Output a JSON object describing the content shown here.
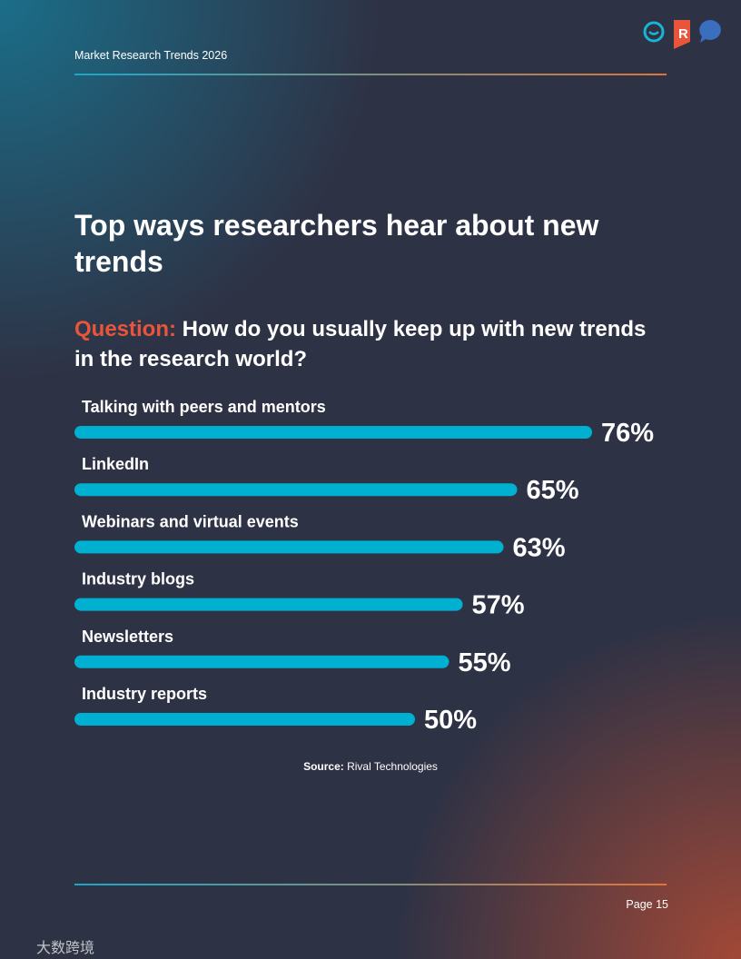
{
  "header": {
    "title": "Market Research Trends 2026"
  },
  "title": "Top ways researchers hear about new trends",
  "question": {
    "label": "Question:",
    "text": "How do you usually keep up with new trends in the research world?"
  },
  "chart_data": {
    "type": "bar",
    "orientation": "horizontal",
    "color": "#00b0d0",
    "categories": [
      "Talking with peers and mentors",
      "LinkedIn",
      "Webinars and virtual events",
      "Industry blogs",
      "Newsletters",
      "Industry reports"
    ],
    "values": [
      76,
      65,
      63,
      57,
      55,
      50
    ],
    "value_labels": [
      "76%",
      "65%",
      "63%",
      "57%",
      "55%",
      "50%"
    ]
  },
  "source": {
    "label": "Source:",
    "text": "Rival Technologies"
  },
  "footer": {
    "page": "Page 15",
    "watermark": "大数跨境"
  }
}
